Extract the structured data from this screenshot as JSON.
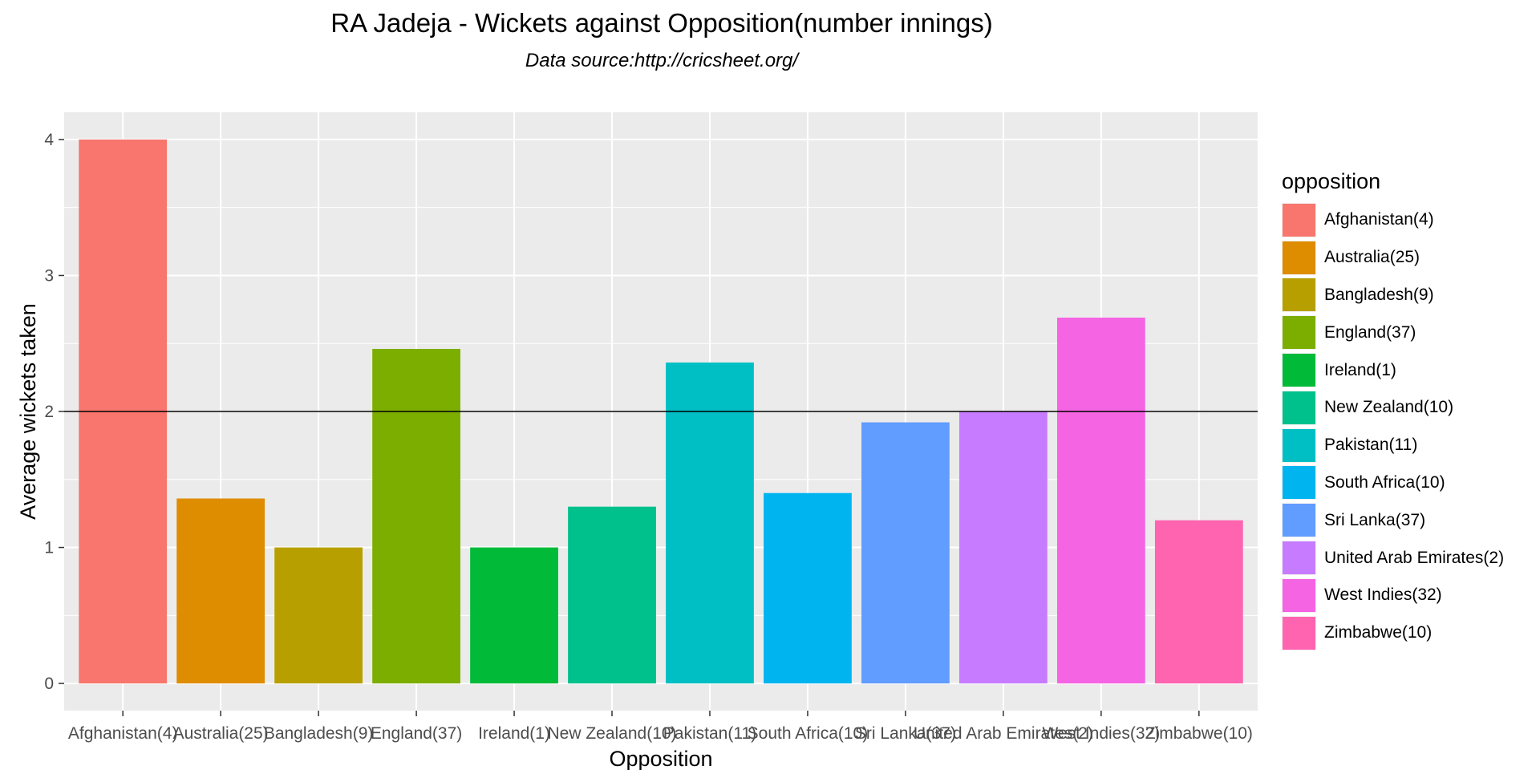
{
  "chart_data": {
    "type": "bar",
    "title": "RA Jadeja - Wickets against Opposition(number innings)",
    "subtitle": "Data source:http://cricsheet.org/",
    "xlabel": "Opposition",
    "ylabel": "Average wickets taken",
    "ylim": [
      -0.2,
      4.2
    ],
    "yticks": [
      "0",
      "1",
      "2",
      "3",
      "4"
    ],
    "grid": true,
    "legend_title": "opposition",
    "legend_position": "right",
    "reference_line": 2,
    "categories": [
      "Afghanistan(4)",
      "Australia(25)",
      "Bangladesh(9)",
      "England(37)",
      "Ireland(1)",
      "New Zealand(10)",
      "Pakistan(11)",
      "South Africa(10)",
      "Sri Lanka(37)",
      "United Arab Emirates(2)",
      "West Indies(32)",
      "Zimbabwe(10)"
    ],
    "values": [
      4.0,
      1.36,
      1.0,
      2.46,
      1.0,
      1.3,
      2.36,
      1.4,
      1.92,
      2.0,
      2.69,
      1.2
    ],
    "colors": [
      "#F8766D",
      "#DE8C00",
      "#B79F00",
      "#7CAE00",
      "#00BA38",
      "#00C08B",
      "#00BFC4",
      "#00B4F0",
      "#619CFF",
      "#C77CFF",
      "#F564E3",
      "#FF64B0"
    ]
  }
}
